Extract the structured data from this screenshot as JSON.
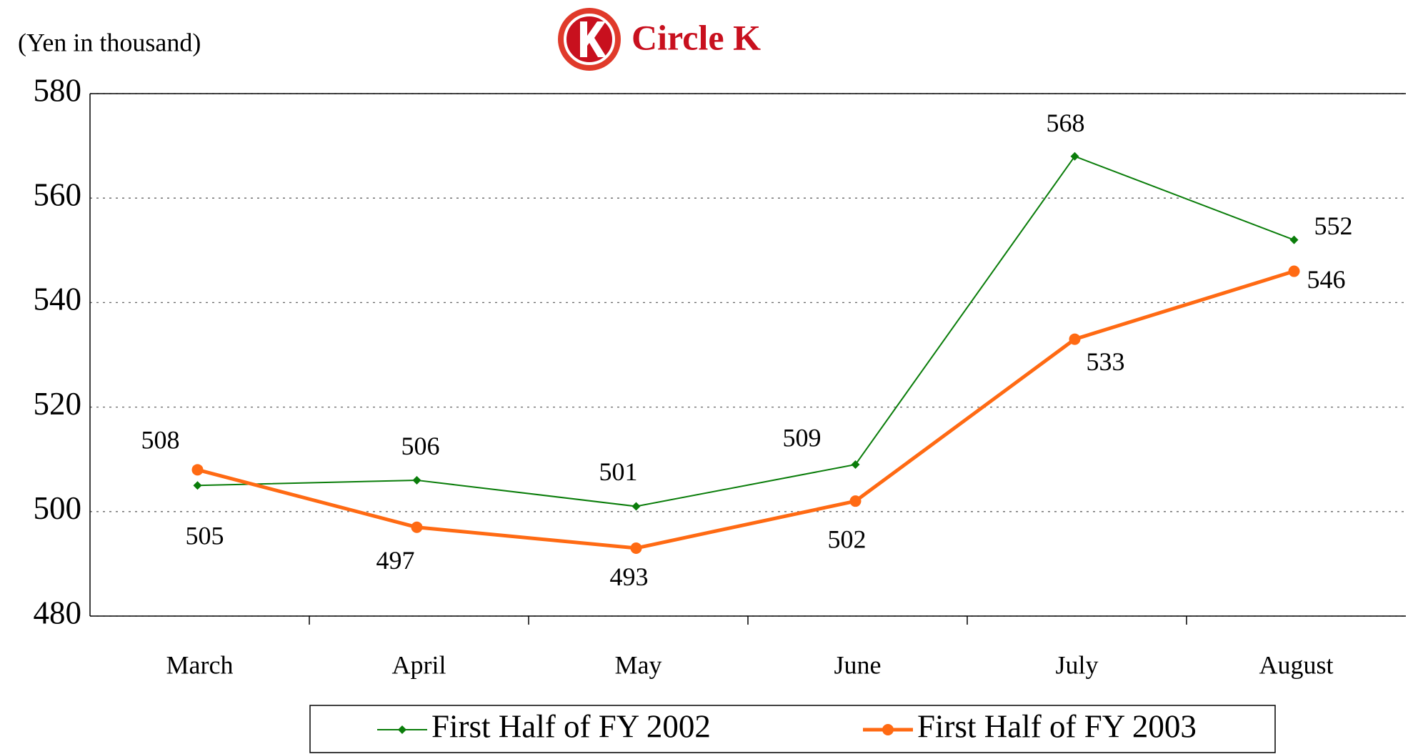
{
  "chart_data": {
    "type": "line",
    "subtitle": "(Yen in  thousand)",
    "logo": "Circle K",
    "categories": [
      "March",
      "April",
      "May",
      "June",
      "July",
      "August"
    ],
    "series": [
      {
        "name": "First Half of FY 2002",
        "color": "#0a7d0a",
        "marker": "diamond",
        "values": [
          505,
          506,
          501,
          509,
          568,
          552
        ]
      },
      {
        "name": "First Half of FY 2003",
        "color": "#ff6a13",
        "marker": "circle",
        "values": [
          508,
          497,
          493,
          502,
          533,
          546
        ]
      }
    ],
    "ylim": [
      480,
      580
    ],
    "yticks": [
      480,
      500,
      520,
      540,
      560,
      580
    ],
    "grid": true,
    "legend": "bottom"
  }
}
